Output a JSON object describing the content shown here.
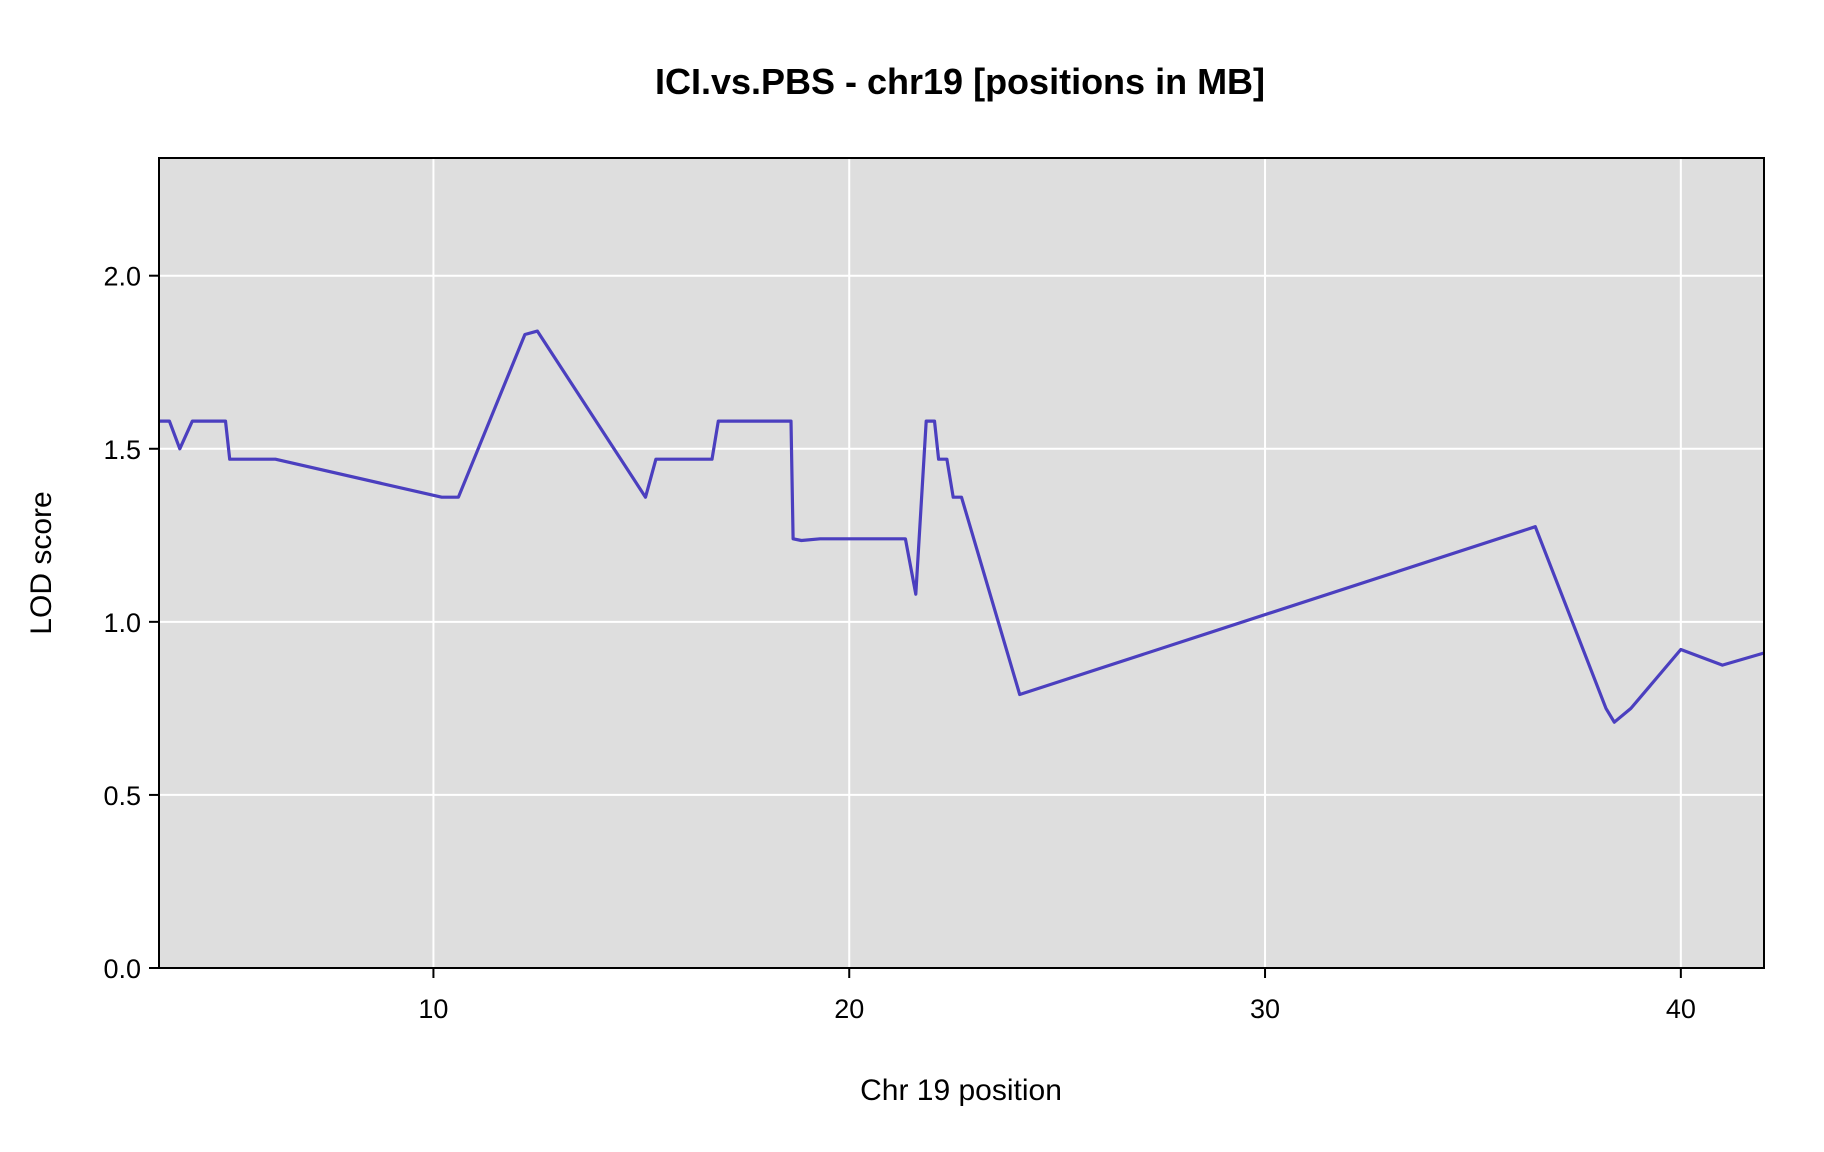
{
  "chart_data": {
    "type": "line",
    "title": "ICI.vs.PBS - chr19 [positions in MB]",
    "xlabel": "Chr 19 position",
    "ylabel": "LOD score",
    "xlim": [
      3.4,
      42.0
    ],
    "ylim": [
      0.0,
      2.34
    ],
    "x_ticks": [
      10,
      20,
      30,
      40
    ],
    "x_tick_labels": [
      "10",
      "20",
      "30",
      "40"
    ],
    "y_ticks": [
      0.0,
      0.5,
      1.0,
      1.5,
      2.0
    ],
    "y_tick_labels": [
      "0.0",
      "0.5",
      "1.0",
      "1.5",
      "2.0"
    ],
    "grid": true,
    "panel_background": "#dedede",
    "grid_color": "#ffffff",
    "series": [
      {
        "color": "#4b3fbf",
        "x": [
          3.4,
          3.65,
          3.9,
          4.2,
          5.0,
          5.1,
          6.2,
          10.2,
          10.6,
          12.2,
          12.5,
          15.1,
          15.35,
          16.7,
          16.85,
          18.6,
          18.65,
          18.85,
          19.3,
          21.35,
          21.6,
          21.85,
          22.05,
          22.15,
          22.35,
          22.5,
          22.7,
          24.1,
          36.5,
          38.2,
          38.4,
          38.8,
          40.0,
          41.0,
          42.0
        ],
        "y": [
          1.58,
          1.58,
          1.5,
          1.58,
          1.58,
          1.47,
          1.47,
          1.36,
          1.36,
          1.83,
          1.84,
          1.36,
          1.47,
          1.47,
          1.58,
          1.58,
          1.24,
          1.235,
          1.24,
          1.24,
          1.08,
          1.58,
          1.58,
          1.47,
          1.47,
          1.36,
          1.36,
          0.79,
          1.275,
          0.75,
          0.71,
          0.75,
          0.92,
          0.875,
          0.91
        ]
      }
    ]
  }
}
